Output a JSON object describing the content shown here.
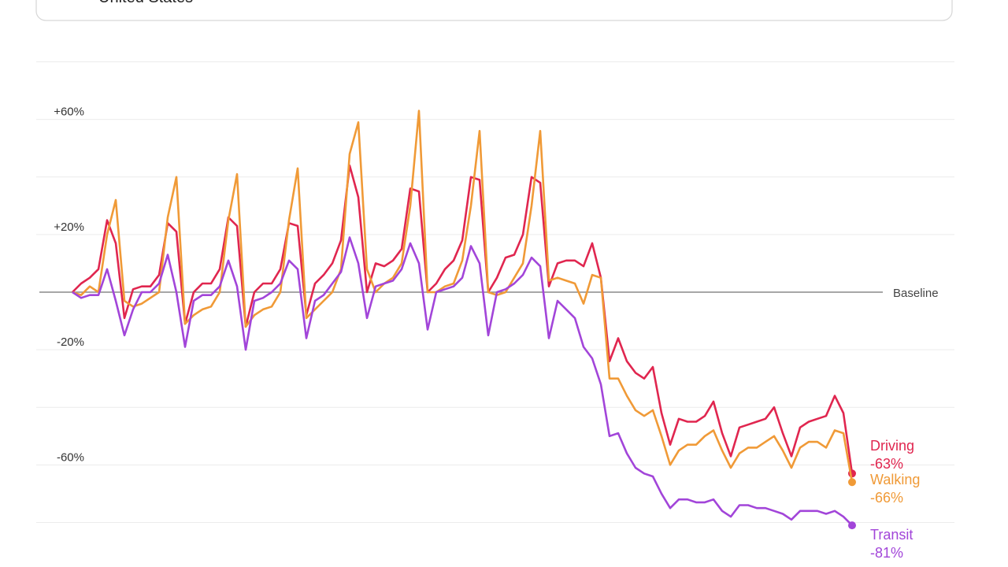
{
  "search_text": "United States",
  "chart_data": {
    "type": "line",
    "categories": [
      null,
      null,
      null,
      null,
      null,
      null,
      null,
      null,
      null,
      null,
      null,
      null,
      null,
      null,
      null,
      null,
      null,
      null,
      null,
      null,
      null,
      null,
      null,
      null,
      null,
      null,
      null,
      null,
      null,
      null,
      null,
      null,
      null,
      null,
      null,
      null,
      null,
      null,
      null,
      null,
      null,
      null,
      null,
      null,
      null,
      null,
      null,
      null,
      null,
      null,
      null,
      null,
      null,
      null,
      null,
      null,
      null,
      null,
      null,
      null,
      null,
      null,
      null,
      null,
      null,
      null,
      null,
      null,
      null,
      null,
      null,
      null,
      null,
      null,
      null,
      null,
      null,
      null,
      null,
      null,
      null,
      null,
      null,
      null,
      null,
      null,
      null,
      null,
      null,
      null,
      null
    ],
    "ylim": [
      -90,
      90
    ],
    "yticks": [
      {
        "value": 60,
        "label": "+60%"
      },
      {
        "value": 20,
        "label": "+20%"
      },
      {
        "value": -20,
        "label": "-20%"
      },
      {
        "value": -60,
        "label": "-60%"
      }
    ],
    "minor_yticks": [
      80,
      40,
      -40,
      -80
    ],
    "baseline": {
      "value": 0,
      "label": "Baseline"
    },
    "grid": true,
    "series": [
      {
        "name": "Driving",
        "color": "#e0264f",
        "last_label": "-63%",
        "values": [
          0,
          3,
          5,
          8,
          25,
          17,
          -9,
          1,
          2,
          2,
          6,
          24,
          21,
          -11,
          0,
          3,
          3,
          8,
          26,
          23,
          -12,
          0,
          3,
          3,
          8,
          24,
          23,
          -8,
          3,
          6,
          10,
          18,
          44,
          33,
          0,
          10,
          9,
          11,
          15,
          36,
          35,
          0,
          3,
          8,
          11,
          18,
          40,
          39,
          0,
          5,
          12,
          13,
          20,
          40,
          38,
          2,
          10,
          11,
          11,
          9,
          17,
          5,
          -24,
          -16,
          -24,
          -28,
          -30,
          -26,
          -42,
          -53,
          -44,
          -45,
          -45,
          -43,
          -38,
          -49,
          -57,
          -47,
          -46,
          -45,
          -44,
          -40,
          -49,
          -57,
          -47,
          -45,
          -44,
          -43,
          -36,
          -42,
          -63
        ]
      },
      {
        "name": "Walking",
        "color": "#f09a37",
        "last_label": "-66%",
        "values": [
          0,
          -1,
          2,
          0,
          20,
          32,
          -3,
          -5,
          -4,
          -2,
          0,
          26,
          40,
          -11,
          -8,
          -6,
          -5,
          0,
          25,
          41,
          -12,
          -8,
          -6,
          -5,
          0,
          25,
          43,
          -9,
          -6,
          -3,
          0,
          8,
          48,
          59,
          8,
          0,
          3,
          5,
          10,
          30,
          63,
          0,
          0,
          2,
          3,
          11,
          30,
          56,
          0,
          -1,
          0,
          5,
          10,
          30,
          56,
          4,
          5,
          4,
          3,
          -4,
          6,
          5,
          -30,
          -30,
          -36,
          -41,
          -43,
          -41,
          -50,
          -60,
          -55,
          -53,
          -53,
          -50,
          -48,
          -55,
          -61,
          -56,
          -54,
          -54,
          -52,
          -50,
          -55,
          -61,
          -54,
          -52,
          -52,
          -54,
          -48,
          -49,
          -66
        ]
      },
      {
        "name": "Transit",
        "color": "#a245d9",
        "last_label": "-81%",
        "values": [
          0,
          -2,
          -1,
          -1,
          8,
          -3,
          -15,
          -6,
          0,
          0,
          3,
          13,
          0,
          -19,
          -3,
          -1,
          -1,
          2,
          11,
          2,
          -20,
          -3,
          -2,
          0,
          3,
          11,
          8,
          -16,
          -3,
          -1,
          3,
          7,
          19,
          10,
          -9,
          2,
          3,
          4,
          8,
          17,
          10,
          -13,
          0,
          1,
          2,
          5,
          16,
          10,
          -15,
          0,
          1,
          3,
          6,
          12,
          9,
          -16,
          -3,
          -6,
          -9,
          -19,
          -23,
          -32,
          -50,
          -49,
          -56,
          -61,
          -63,
          -64,
          -70,
          -75,
          -72,
          -72,
          -73,
          -73,
          -72,
          -76,
          -78,
          -74,
          -74,
          -75,
          -75,
          -76,
          -77,
          -79,
          -76,
          -76,
          -76,
          -77,
          -76,
          -78,
          -81
        ]
      }
    ]
  }
}
